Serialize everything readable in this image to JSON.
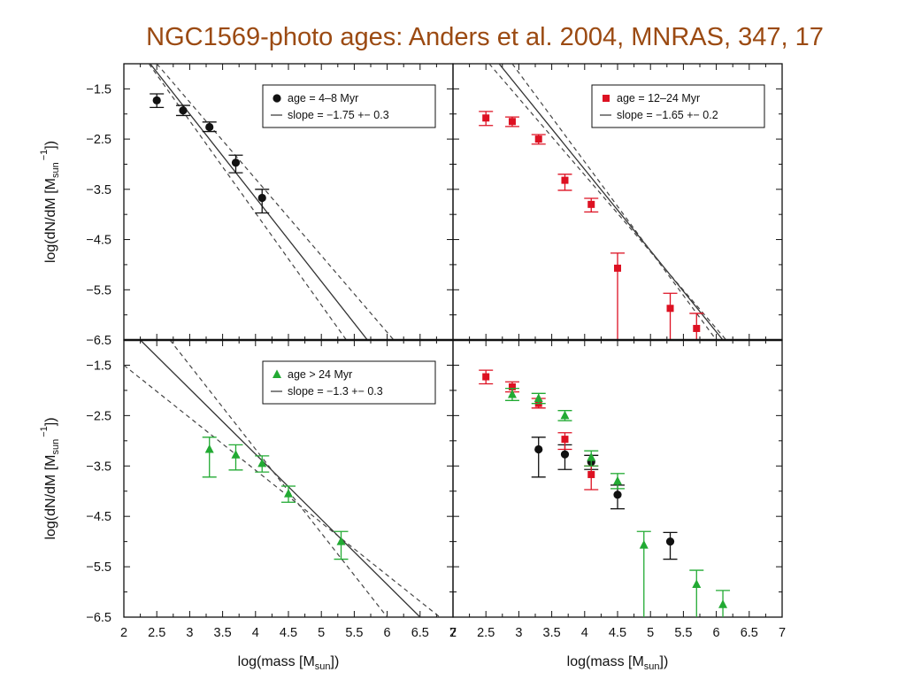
{
  "title": "NGC1569-photo ages: Anders et al. 2004, MNRAS, 347, 17",
  "chart_data": [
    {
      "type": "scatter",
      "panel": "top-left",
      "xlim": [
        2,
        7
      ],
      "ylim": [
        -6.5,
        -1
      ],
      "y_ticks": [
        "−1.5",
        "−2.5",
        "−3.5",
        "−4.5",
        "−5.5",
        "−6.5"
      ],
      "legend": {
        "marker_label": "age = 4–8 Myr",
        "line_label": "slope = −1.75 +− 0.3",
        "placement": "top-right"
      },
      "ylabel_main": "log(dN/dM [M",
      "ylabel_sub": "sun",
      "ylabel_sup": "−1",
      "ylabel_end": "])",
      "series": [
        {
          "color": "#111111",
          "marker": "circle",
          "points": [
            {
              "x": 2.5,
              "y": -1.73,
              "lo": -1.87,
              "hi": -1.6
            },
            {
              "x": 2.9,
              "y": -1.93,
              "lo": -2.03,
              "hi": -1.83
            },
            {
              "x": 3.3,
              "y": -2.26,
              "lo": -2.35,
              "hi": -2.16
            },
            {
              "x": 3.7,
              "y": -2.97,
              "lo": -3.17,
              "hi": -2.82
            },
            {
              "x": 4.1,
              "y": -3.67,
              "lo": -3.97,
              "hi": -3.5
            }
          ]
        }
      ],
      "fit_lines": [
        {
          "style": "solid",
          "x1": 2.4,
          "y1": -1.0,
          "x2": 5.7,
          "y2": -6.5
        },
        {
          "style": "dashed",
          "x1": 2.38,
          "y1": -1.0,
          "x2": 5.38,
          "y2": -6.5
        },
        {
          "style": "dashed",
          "x1": 2.5,
          "y1": -1.0,
          "x2": 6.1,
          "y2": -6.5
        }
      ]
    },
    {
      "type": "scatter",
      "panel": "top-right",
      "xlim": [
        2,
        7
      ],
      "ylim": [
        -6.5,
        -1
      ],
      "legend": {
        "marker_label": "age = 12–24 Myr",
        "line_label": "slope = −1.65 +− 0.2",
        "placement": "top-right"
      },
      "series": [
        {
          "color": "#dd1122",
          "marker": "square",
          "points": [
            {
              "x": 2.5,
              "y": -2.08,
              "lo": -2.23,
              "hi": -1.95
            },
            {
              "x": 2.9,
              "y": -2.15,
              "lo": -2.25,
              "hi": -2.06
            },
            {
              "x": 3.3,
              "y": -2.5,
              "lo": -2.6,
              "hi": -2.41
            },
            {
              "x": 3.7,
              "y": -3.32,
              "lo": -3.52,
              "hi": -3.2
            },
            {
              "x": 4.1,
              "y": -3.8,
              "lo": -3.95,
              "hi": -3.68
            },
            {
              "x": 4.5,
              "y": -5.07,
              "lo": -6.5,
              "hi": -4.77
            },
            {
              "x": 5.3,
              "y": -5.87,
              "lo": -6.5,
              "hi": -5.57
            },
            {
              "x": 5.7,
              "y": -6.27,
              "lo": -6.5,
              "hi": -5.97
            }
          ]
        }
      ],
      "fit_lines": [
        {
          "style": "solid",
          "x1": 2.7,
          "y1": -1.0,
          "x2": 6.1,
          "y2": -6.5
        },
        {
          "style": "dashed",
          "x1": 2.55,
          "y1": -1.0,
          "x2": 6.15,
          "y2": -6.5
        },
        {
          "style": "dashed",
          "x1": 2.9,
          "y1": -1.0,
          "x2": 6.0,
          "y2": -6.5
        }
      ]
    },
    {
      "type": "scatter",
      "panel": "bottom-left",
      "xlim": [
        2,
        7
      ],
      "ylim": [
        -6.5,
        -1
      ],
      "x_ticks": [
        "2",
        "2.5",
        "3",
        "3.5",
        "4",
        "4.5",
        "5",
        "5.5",
        "6",
        "6.5",
        "7"
      ],
      "y_ticks": [
        "−1.5",
        "−2.5",
        "−3.5",
        "−4.5",
        "−5.5",
        "−6.5"
      ],
      "xlabel_main": "log(mass [M",
      "xlabel_sub": "sun",
      "xlabel_end": "])",
      "ylabel_main": "log(dN/dM [M",
      "ylabel_sub": "sun",
      "ylabel_sup": "−1",
      "ylabel_end": "])",
      "legend": {
        "marker_label": "age > 24 Myr",
        "line_label": "slope = −1.3 +− 0.3",
        "placement": "top-right"
      },
      "series": [
        {
          "color": "#22aa33",
          "marker": "triangle",
          "points": [
            {
              "x": 3.3,
              "y": -3.17,
              "lo": -3.72,
              "hi": -2.93
            },
            {
              "x": 3.7,
              "y": -3.28,
              "lo": -3.58,
              "hi": -3.08
            },
            {
              "x": 4.1,
              "y": -3.45,
              "lo": -3.62,
              "hi": -3.3
            },
            {
              "x": 4.5,
              "y": -4.05,
              "lo": -4.22,
              "hi": -3.9
            },
            {
              "x": 5.3,
              "y": -5.0,
              "lo": -5.35,
              "hi": -4.8
            }
          ]
        }
      ],
      "fit_lines": [
        {
          "style": "solid",
          "x1": 2.25,
          "y1": -1.0,
          "x2": 6.5,
          "y2": -6.5
        },
        {
          "style": "dashed",
          "x1": 2.0,
          "y1": -1.5,
          "x2": 6.8,
          "y2": -6.5
        },
        {
          "style": "dashed",
          "x1": 2.7,
          "y1": -1.0,
          "x2": 6.0,
          "y2": -6.5
        }
      ]
    },
    {
      "type": "scatter",
      "panel": "bottom-right",
      "xlim": [
        2,
        7
      ],
      "ylim": [
        -6.5,
        -1
      ],
      "x_ticks": [
        "2",
        "2.5",
        "3",
        "3.5",
        "4",
        "4.5",
        "5",
        "5.5",
        "6",
        "6.5",
        "7"
      ],
      "xlabel_main": "log(mass [M",
      "xlabel_sub": "sun",
      "xlabel_end": "])",
      "series": [
        {
          "color": "#111111",
          "marker": "circle",
          "points": [
            {
              "x": 3.3,
              "y": -3.17,
              "lo": -3.72,
              "hi": -2.93
            },
            {
              "x": 3.7,
              "y": -3.27,
              "lo": -3.57,
              "hi": -3.08
            },
            {
              "x": 4.1,
              "y": -3.42,
              "lo": -3.57,
              "hi": -3.29
            },
            {
              "x": 4.5,
              "y": -4.07,
              "lo": -4.35,
              "hi": -3.88
            },
            {
              "x": 5.3,
              "y": -5.0,
              "lo": -5.35,
              "hi": -4.82
            }
          ]
        },
        {
          "color": "#dd1122",
          "marker": "square",
          "points": [
            {
              "x": 2.5,
              "y": -1.73,
              "lo": -1.87,
              "hi": -1.6
            },
            {
              "x": 2.9,
              "y": -1.93,
              "lo": -2.03,
              "hi": -1.83
            },
            {
              "x": 3.3,
              "y": -2.26,
              "lo": -2.35,
              "hi": -2.16
            },
            {
              "x": 3.7,
              "y": -2.97,
              "lo": -3.17,
              "hi": -2.84
            },
            {
              "x": 4.1,
              "y": -3.67,
              "lo": -3.97,
              "hi": -3.5
            }
          ]
        },
        {
          "color": "#22aa33",
          "marker": "triangle",
          "points": [
            {
              "x": 2.9,
              "y": -2.08,
              "lo": -2.2,
              "hi": -1.96
            },
            {
              "x": 3.3,
              "y": -2.16,
              "lo": -2.26,
              "hi": -2.06
            },
            {
              "x": 3.7,
              "y": -2.5,
              "lo": -2.6,
              "hi": -2.4
            },
            {
              "x": 4.1,
              "y": -3.33,
              "lo": -3.5,
              "hi": -3.2
            },
            {
              "x": 4.5,
              "y": -3.8,
              "lo": -3.95,
              "hi": -3.65
            },
            {
              "x": 4.9,
              "y": -5.07,
              "lo": -6.5,
              "hi": -4.8
            },
            {
              "x": 5.7,
              "y": -5.85,
              "lo": -6.5,
              "hi": -5.57
            },
            {
              "x": 6.1,
              "y": -6.25,
              "lo": -6.5,
              "hi": -5.97
            }
          ]
        }
      ],
      "fit_lines": []
    }
  ]
}
